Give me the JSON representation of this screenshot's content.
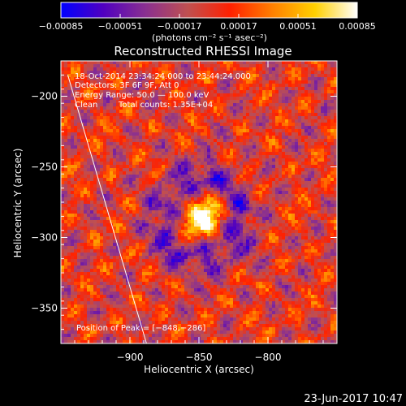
{
  "chart_data": {
    "type": "heatmap",
    "title": "Reconstructed RHESSI Image",
    "xlabel": "Heliocentric X (arcsec)",
    "ylabel": "Heliocentric Y (arcsec)",
    "xlim": [
      -950,
      -750
    ],
    "ylim": [
      -375,
      -175
    ],
    "x_ticks": [
      -900,
      -850,
      -800
    ],
    "y_ticks": [
      -350,
      -300,
      -250,
      -200
    ],
    "x_tick_labels": [
      "−900",
      "−850",
      "−800"
    ],
    "y_tick_labels": [
      "−350",
      "−300",
      "−250",
      "−200"
    ],
    "colorbar": {
      "range": [
        -0.00085,
        0.00085
      ],
      "ticks": [
        -0.00085,
        -0.00051,
        -0.00017,
        0.00017,
        0.00051,
        0.00085
      ],
      "tick_labels": [
        "−0.00085",
        "−0.00051",
        "−0.00017",
        "0.00017",
        "0.00051",
        "0.00085"
      ],
      "unit_label": "(photons cm⁻² s⁻¹ asec⁻²)",
      "stops": [
        "#0000ff",
        "#5000c0",
        "#8a3090",
        "#c05050",
        "#ff2000",
        "#ff8000",
        "#ffd000",
        "#ffffff"
      ]
    },
    "annotations": [
      "18-Oct-2014 23:34:24.000 to 23:44:24.000",
      "Detectors: 3F 6F 9F, Att 0",
      "Energy Range: 50.0 — 100.0 keV",
      "Clean",
      "Total counts: 1.35E+04"
    ],
    "peak": {
      "x": -848,
      "y": -286,
      "label": "Position of Peak = [−848,−286]"
    },
    "sources": [
      {
        "x": -848,
        "y": -286,
        "amplitude": 0.00085,
        "sigma": 11
      }
    ],
    "limb_line": [
      [
        -945,
        -185
      ],
      [
        -888,
        -375
      ]
    ],
    "footer": "23-Jun-2017 10:47"
  }
}
